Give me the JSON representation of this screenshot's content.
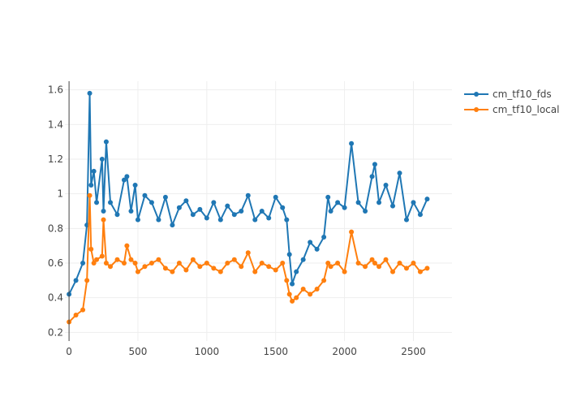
{
  "chart_data": {
    "type": "line",
    "title": "",
    "xlabel": "",
    "ylabel": "",
    "xlim": [
      -30,
      2780
    ],
    "ylim": [
      0.15,
      1.65
    ],
    "x_ticks": [
      0,
      500,
      1000,
      1500,
      2000,
      2500
    ],
    "x_tick_labels": [
      "0",
      "500",
      "1000",
      "1500",
      "2000",
      "2500"
    ],
    "y_ticks": [
      0.2,
      0.4,
      0.6,
      0.8,
      1.0,
      1.2,
      1.4,
      1.6
    ],
    "y_tick_labels": [
      "0.2",
      "0.4",
      "0.6",
      "0.8",
      "1",
      "1.2",
      "1.4",
      "1.6"
    ],
    "grid": true,
    "legend_position": "top-right",
    "x": [
      0,
      50,
      100,
      130,
      150,
      160,
      180,
      200,
      240,
      250,
      270,
      300,
      350,
      400,
      420,
      450,
      480,
      500,
      550,
      600,
      650,
      700,
      750,
      800,
      850,
      900,
      950,
      1000,
      1050,
      1100,
      1150,
      1200,
      1250,
      1300,
      1350,
      1400,
      1450,
      1500,
      1550,
      1580,
      1600,
      1620,
      1650,
      1700,
      1750,
      1800,
      1850,
      1880,
      1900,
      1950,
      2000,
      2050,
      2100,
      2150,
      2200,
      2220,
      2250,
      2300,
      2350,
      2400,
      2450,
      2500,
      2550,
      2600
    ],
    "series": [
      {
        "name": "cm_tf10_fds",
        "color": "#1f77b4",
        "values": [
          0.42,
          0.5,
          0.6,
          0.82,
          1.58,
          1.05,
          1.13,
          0.95,
          1.2,
          0.9,
          1.3,
          0.95,
          0.88,
          1.08,
          1.1,
          0.9,
          1.05,
          0.85,
          0.99,
          0.95,
          0.85,
          0.98,
          0.82,
          0.92,
          0.96,
          0.88,
          0.91,
          0.86,
          0.95,
          0.85,
          0.93,
          0.88,
          0.9,
          0.99,
          0.85,
          0.9,
          0.86,
          0.98,
          0.92,
          0.85,
          0.65,
          0.48,
          0.55,
          0.62,
          0.72,
          0.68,
          0.75,
          0.98,
          0.9,
          0.95,
          0.92,
          1.29,
          0.95,
          0.9,
          1.1,
          1.17,
          0.95,
          1.05,
          0.93,
          1.12,
          0.85,
          0.95,
          0.88,
          0.97
        ]
      },
      {
        "name": "cm_tf10_local",
        "color": "#ff7f0e",
        "values": [
          0.26,
          0.3,
          0.33,
          0.5,
          0.99,
          0.68,
          0.6,
          0.62,
          0.64,
          0.85,
          0.6,
          0.58,
          0.62,
          0.6,
          0.7,
          0.62,
          0.6,
          0.55,
          0.58,
          0.6,
          0.62,
          0.57,
          0.55,
          0.6,
          0.56,
          0.62,
          0.58,
          0.6,
          0.57,
          0.55,
          0.6,
          0.62,
          0.58,
          0.66,
          0.55,
          0.6,
          0.58,
          0.56,
          0.6,
          0.5,
          0.42,
          0.38,
          0.4,
          0.45,
          0.42,
          0.45,
          0.5,
          0.6,
          0.58,
          0.6,
          0.55,
          0.78,
          0.6,
          0.58,
          0.62,
          0.6,
          0.58,
          0.62,
          0.55,
          0.6,
          0.57,
          0.6,
          0.55,
          0.57
        ]
      }
    ]
  }
}
